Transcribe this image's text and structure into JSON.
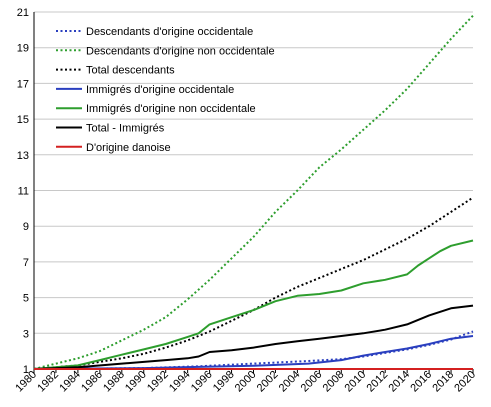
{
  "chart_data": {
    "type": "line",
    "title": "",
    "xlabel": "",
    "ylabel": "",
    "xlim": [
      1980,
      2020
    ],
    "ylim": [
      1,
      21
    ],
    "y_ticks": [
      1,
      3,
      5,
      7,
      9,
      11,
      13,
      15,
      17,
      19,
      21
    ],
    "x_ticks": [
      1980,
      1982,
      1984,
      1986,
      1988,
      1990,
      1992,
      1994,
      1996,
      1998,
      2000,
      2002,
      2004,
      2006,
      2008,
      2010,
      2012,
      2014,
      2016,
      2018,
      2020
    ],
    "grid": "horizontal",
    "legend_position": "top-left",
    "series": [
      {
        "name": "Descendants d'origine occidentale",
        "style": "dotted",
        "color": "#2a3fbf",
        "x": [
          1980,
          1985,
          1990,
          1995,
          2000,
          2005,
          2008,
          2010,
          2012,
          2014,
          2016,
          2018,
          2020
        ],
        "y": [
          1.0,
          1.02,
          1.05,
          1.15,
          1.3,
          1.45,
          1.55,
          1.7,
          1.9,
          2.1,
          2.35,
          2.65,
          3.1
        ]
      },
      {
        "name": "Descendants d'origine non occidentale",
        "style": "dotted",
        "color": "#2e9e2e",
        "x": [
          1980,
          1982,
          1984,
          1986,
          1988,
          1990,
          1992,
          1994,
          1996,
          1998,
          2000,
          2002,
          2004,
          2006,
          2008,
          2010,
          2012,
          2014,
          2016,
          2018,
          2020
        ],
        "y": [
          1.0,
          1.3,
          1.6,
          2.0,
          2.6,
          3.2,
          3.9,
          4.9,
          6.0,
          7.2,
          8.4,
          9.8,
          11.0,
          12.3,
          13.3,
          14.4,
          15.5,
          16.7,
          18.1,
          19.5,
          20.8
        ]
      },
      {
        "name": "Total  descendants",
        "style": "dotted",
        "color": "#000000",
        "x": [
          1980,
          1984,
          1988,
          1990,
          1992,
          1994,
          1996,
          1998,
          2000,
          2002,
          2004,
          2006,
          2008,
          2010,
          2012,
          2014,
          2016,
          2018,
          2020
        ],
        "y": [
          1.0,
          1.2,
          1.6,
          1.85,
          2.2,
          2.6,
          3.1,
          3.7,
          4.3,
          5.0,
          5.6,
          6.1,
          6.6,
          7.1,
          7.7,
          8.3,
          9.0,
          9.8,
          10.6
        ]
      },
      {
        "name": "Immigrés d'origine occidentale",
        "style": "solid",
        "color": "#2a3fbf",
        "x": [
          1980,
          1985,
          1990,
          1995,
          2000,
          2005,
          2008,
          2010,
          2012,
          2014,
          2016,
          2018,
          2020
        ],
        "y": [
          1.0,
          1.03,
          1.05,
          1.12,
          1.18,
          1.3,
          1.5,
          1.75,
          1.95,
          2.15,
          2.4,
          2.7,
          2.85
        ]
      },
      {
        "name": "Immigrés d'origine non occidentale",
        "style": "solid",
        "color": "#2e9e2e",
        "x": [
          1980,
          1984,
          1986,
          1988,
          1990,
          1992,
          1994,
          1995,
          1996,
          1997,
          1998,
          2000,
          2002,
          2004,
          2006,
          2008,
          2010,
          2012,
          2014,
          2015,
          2016,
          2017,
          2018,
          2020
        ],
        "y": [
          1.0,
          1.2,
          1.5,
          1.8,
          2.1,
          2.4,
          2.8,
          3.0,
          3.5,
          3.7,
          3.9,
          4.3,
          4.8,
          5.1,
          5.2,
          5.4,
          5.8,
          6.0,
          6.3,
          6.8,
          7.2,
          7.6,
          7.9,
          8.2
        ]
      },
      {
        "name": "Total - Immigrés",
        "style": "solid",
        "color": "#000000",
        "x": [
          1980,
          1984,
          1988,
          1990,
          1992,
          1994,
          1995,
          1996,
          1998,
          2000,
          2002,
          2004,
          2006,
          2008,
          2010,
          2012,
          2014,
          2016,
          2018,
          2020
        ],
        "y": [
          1.0,
          1.1,
          1.3,
          1.4,
          1.5,
          1.6,
          1.7,
          1.95,
          2.05,
          2.2,
          2.4,
          2.55,
          2.7,
          2.85,
          3.0,
          3.2,
          3.5,
          4.0,
          4.4,
          4.55
        ]
      },
      {
        "name": "D'origine danoise",
        "style": "solid",
        "color": "#d42020",
        "x": [
          1980,
          1990,
          2000,
          2010,
          2020
        ],
        "y": [
          1.0,
          1.0,
          1.0,
          1.0,
          1.0
        ]
      }
    ]
  }
}
